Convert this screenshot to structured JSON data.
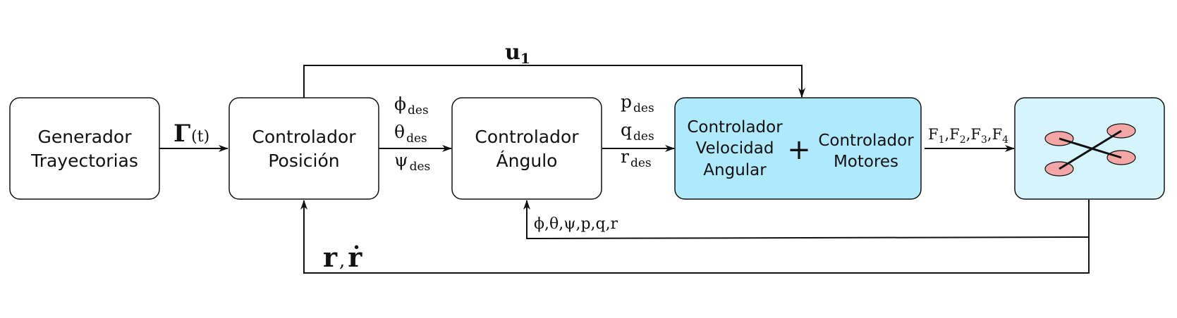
{
  "blocks": {
    "generator": {
      "line1": "Generador",
      "line2": "Trayectorias"
    },
    "position": {
      "line1": "Controlador",
      "line2": "Posición"
    },
    "angle": {
      "line1": "Controlador",
      "line2": "Ángulo"
    },
    "rate": {
      "line1": "Controlador",
      "line2": "Velocidad",
      "line3": "Angular"
    },
    "plus": "+",
    "motors": {
      "line1": "Controlador",
      "line2": "Motores"
    }
  },
  "signals": {
    "gamma": {
      "main": "Γ",
      "arg": "(t)"
    },
    "u1": {
      "main": "u",
      "sub": "1"
    },
    "phi_des": {
      "main": "ϕ",
      "sub": "des"
    },
    "theta_des": {
      "main": "θ",
      "sub": "des"
    },
    "psi_des": {
      "main": "ψ",
      "sub": "des"
    },
    "p_des": {
      "main": "p",
      "sub": "des"
    },
    "q_des": {
      "main": "q",
      "sub": "des"
    },
    "r_des": {
      "main": "r",
      "sub": "des"
    },
    "forces": {
      "f": "F",
      "s1": "1",
      "s2": "2",
      "s3": "3",
      "s4": "4",
      "sep": ","
    },
    "attitude_feedback": "ϕ,θ,ψ,p,q,r",
    "pos_feedback": {
      "r": "r",
      "sep": ",",
      "rdot": "ṙ"
    }
  },
  "colors": {
    "rate_block_fill": "#aeeafb",
    "plant_block_fill": "#d6f4fc",
    "rotor_fill": "#f4a6a6",
    "stroke": "#111111"
  },
  "icons": {
    "plant": "quadrotor-icon"
  }
}
